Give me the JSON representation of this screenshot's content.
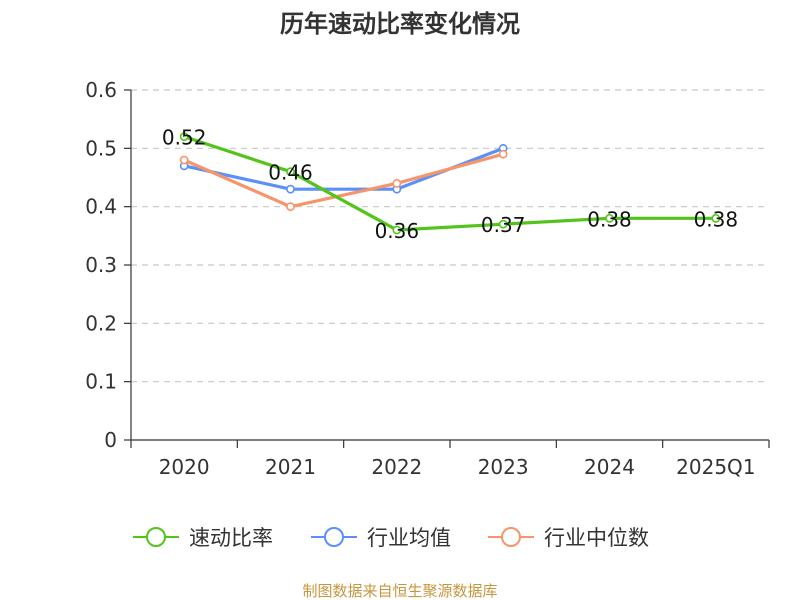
{
  "chart_data": {
    "type": "line",
    "title": "历年速动比率变化情况",
    "categories": [
      "2020",
      "2021",
      "2022",
      "2023",
      "2024",
      "2025Q1"
    ],
    "ylim": [
      0,
      0.6
    ],
    "yticks": [
      "0",
      "0.1",
      "0.2",
      "0.3",
      "0.4",
      "0.5",
      "0.6"
    ],
    "grid": true,
    "legend_position": "bottom",
    "series": [
      {
        "name": "速动比率",
        "color": "#52c41a",
        "values": [
          0.52,
          0.46,
          0.36,
          0.37,
          0.38,
          0.38
        ],
        "labels": [
          "0.52",
          "0.46",
          "0.36",
          "0.37",
          "0.38",
          "0.38"
        ],
        "show_labels": true
      },
      {
        "name": "行业均值",
        "color": "#5b8ff9",
        "values": [
          0.47,
          0.43,
          0.43,
          0.5,
          null,
          null
        ],
        "show_labels": false
      },
      {
        "name": "行业中位数",
        "color": "#f6956a",
        "values": [
          0.48,
          0.4,
          0.44,
          0.49,
          null,
          null
        ],
        "show_labels": false
      }
    ]
  },
  "source": "制图数据来自恒生聚源数据库"
}
